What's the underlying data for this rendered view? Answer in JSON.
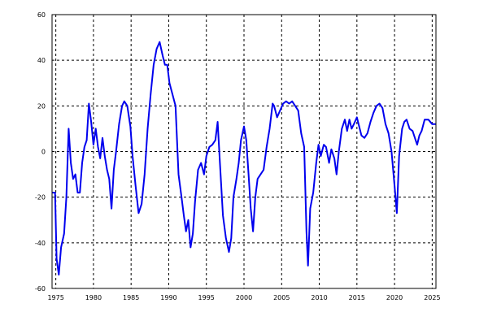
{
  "chart_data": {
    "type": "line",
    "title": "",
    "xlabel": "",
    "ylabel": "",
    "xlim": [
      1974.5,
      2025.5
    ],
    "ylim": [
      -60,
      60
    ],
    "grid": true,
    "legend": "none",
    "line_color": "#0000ee",
    "x_ticks": [
      1975,
      1980,
      1985,
      1990,
      1995,
      2000,
      2005,
      2010,
      2015,
      2020,
      2025
    ],
    "y_ticks": [
      -60,
      -40,
      -20,
      0,
      20,
      40,
      60
    ],
    "series": [
      {
        "points": [
          [
            1974.6,
            -18
          ],
          [
            1974.9,
            -18
          ],
          [
            1975.1,
            -47
          ],
          [
            1975.4,
            -54
          ],
          [
            1975.7,
            -42
          ],
          [
            1976.1,
            -36
          ],
          [
            1976.4,
            -20
          ],
          [
            1976.7,
            10
          ],
          [
            1977.0,
            -5
          ],
          [
            1977.3,
            -12
          ],
          [
            1977.6,
            -10
          ],
          [
            1977.9,
            -18
          ],
          [
            1978.2,
            -18
          ],
          [
            1978.5,
            -5
          ],
          [
            1978.8,
            2
          ],
          [
            1979.1,
            5
          ],
          [
            1979.4,
            21
          ],
          [
            1979.7,
            13
          ],
          [
            1980.0,
            3
          ],
          [
            1980.3,
            10
          ],
          [
            1980.6,
            2
          ],
          [
            1980.9,
            -3
          ],
          [
            1981.2,
            6
          ],
          [
            1981.5,
            -2
          ],
          [
            1981.8,
            -8
          ],
          [
            1982.1,
            -12
          ],
          [
            1982.4,
            -25
          ],
          [
            1982.7,
            -8
          ],
          [
            1983.0,
            0
          ],
          [
            1983.4,
            12
          ],
          [
            1983.8,
            20
          ],
          [
            1984.1,
            22
          ],
          [
            1984.5,
            20
          ],
          [
            1984.9,
            11
          ],
          [
            1985.2,
            -2
          ],
          [
            1985.6,
            -15
          ],
          [
            1986.0,
            -27
          ],
          [
            1986.4,
            -23
          ],
          [
            1986.8,
            -10
          ],
          [
            1987.2,
            10
          ],
          [
            1987.6,
            25
          ],
          [
            1988.0,
            38
          ],
          [
            1988.4,
            45
          ],
          [
            1988.8,
            48
          ],
          [
            1989.2,
            42
          ],
          [
            1989.5,
            38
          ],
          [
            1989.8,
            38
          ],
          [
            1990.1,
            30
          ],
          [
            1990.5,
            25
          ],
          [
            1990.9,
            20
          ],
          [
            1991.3,
            -10
          ],
          [
            1991.7,
            -20
          ],
          [
            1992.0,
            -28
          ],
          [
            1992.3,
            -35
          ],
          [
            1992.6,
            -30
          ],
          [
            1992.9,
            -42
          ],
          [
            1993.2,
            -36
          ],
          [
            1993.5,
            -22
          ],
          [
            1993.9,
            -8
          ],
          [
            1994.3,
            -5
          ],
          [
            1994.7,
            -10
          ],
          [
            1995.0,
            -2
          ],
          [
            1995.4,
            2
          ],
          [
            1995.8,
            3
          ],
          [
            1996.2,
            5
          ],
          [
            1996.5,
            13
          ],
          [
            1996.8,
            -5
          ],
          [
            1997.2,
            -28
          ],
          [
            1997.6,
            -38
          ],
          [
            1998.0,
            -44
          ],
          [
            1998.3,
            -38
          ],
          [
            1998.6,
            -20
          ],
          [
            1999.0,
            -12
          ],
          [
            1999.3,
            -5
          ],
          [
            1999.6,
            5
          ],
          [
            2000.0,
            11
          ],
          [
            2000.3,
            5
          ],
          [
            2000.6,
            -10
          ],
          [
            2000.9,
            -25
          ],
          [
            2001.2,
            -35
          ],
          [
            2001.5,
            -20
          ],
          [
            2001.8,
            -12
          ],
          [
            2002.2,
            -10
          ],
          [
            2002.6,
            -8
          ],
          [
            2003.0,
            2
          ],
          [
            2003.4,
            10
          ],
          [
            2003.8,
            21
          ],
          [
            2004.0,
            20
          ],
          [
            2004.4,
            15
          ],
          [
            2004.8,
            18
          ],
          [
            2005.2,
            21
          ],
          [
            2005.6,
            22
          ],
          [
            2006.0,
            21
          ],
          [
            2006.4,
            22
          ],
          [
            2006.8,
            20
          ],
          [
            2007.2,
            18
          ],
          [
            2007.6,
            8
          ],
          [
            2008.0,
            2
          ],
          [
            2008.3,
            -35
          ],
          [
            2008.5,
            -50
          ],
          [
            2008.8,
            -25
          ],
          [
            2009.2,
            -18
          ],
          [
            2009.6,
            -5
          ],
          [
            2009.9,
            3
          ],
          [
            2010.2,
            -2
          ],
          [
            2010.6,
            3
          ],
          [
            2010.9,
            2
          ],
          [
            2011.3,
            -5
          ],
          [
            2011.6,
            1
          ],
          [
            2012.0,
            -3
          ],
          [
            2012.3,
            -10
          ],
          [
            2012.6,
            0
          ],
          [
            2013.0,
            10
          ],
          [
            2013.4,
            14
          ],
          [
            2013.7,
            9
          ],
          [
            2014.0,
            14
          ],
          [
            2014.3,
            10
          ],
          [
            2014.6,
            12
          ],
          [
            2015.0,
            15
          ],
          [
            2015.3,
            11
          ],
          [
            2015.6,
            7
          ],
          [
            2016.0,
            6
          ],
          [
            2016.4,
            8
          ],
          [
            2016.8,
            13
          ],
          [
            2017.2,
            17
          ],
          [
            2017.6,
            20
          ],
          [
            2018.0,
            21
          ],
          [
            2018.4,
            19
          ],
          [
            2018.8,
            12
          ],
          [
            2019.2,
            8
          ],
          [
            2019.6,
            0
          ],
          [
            2020.0,
            -15
          ],
          [
            2020.3,
            -27
          ],
          [
            2020.6,
            -2
          ],
          [
            2021.0,
            10
          ],
          [
            2021.3,
            13
          ],
          [
            2021.6,
            14
          ],
          [
            2022.0,
            10
          ],
          [
            2022.4,
            9
          ],
          [
            2022.7,
            6
          ],
          [
            2023.0,
            3
          ],
          [
            2023.3,
            7
          ],
          [
            2023.6,
            9
          ],
          [
            2024.0,
            14
          ],
          [
            2024.5,
            14
          ],
          [
            2025.0,
            12
          ],
          [
            2025.4,
            12
          ]
        ]
      }
    ]
  }
}
